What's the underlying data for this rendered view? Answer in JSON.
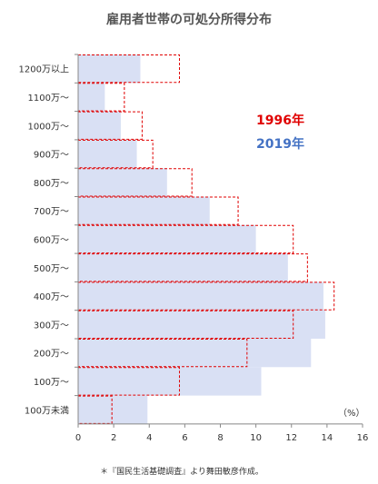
{
  "chart_data": {
    "type": "bar",
    "orientation": "horizontal",
    "title": "雇用者世帯の可処分所得分布",
    "unit_label": "（%）",
    "source_note": "＊『国民生活基礎調査』より舞田敏彦作成。",
    "categories": [
      "1200万以上",
      "1100万〜",
      "1000万〜",
      "900万〜",
      "800万〜",
      "700万〜",
      "600万〜",
      "500万〜",
      "400万〜",
      "300万〜",
      "200万〜",
      "100万〜",
      "100万未満"
    ],
    "xlim": [
      0,
      16
    ],
    "xticks": [
      0,
      2,
      4,
      6,
      8,
      10,
      12,
      14,
      16
    ],
    "series": [
      {
        "name": "2019年",
        "color": "#d9e0f4",
        "style": "filled",
        "values": [
          3.5,
          1.5,
          2.4,
          3.3,
          5.0,
          7.4,
          10.0,
          11.8,
          13.8,
          13.9,
          13.1,
          10.3,
          3.9
        ]
      },
      {
        "name": "1996年",
        "color": "#e00000",
        "style": "dashed-outline",
        "values": [
          5.7,
          2.6,
          3.6,
          4.2,
          6.4,
          9.0,
          12.1,
          12.9,
          14.4,
          12.1,
          9.5,
          5.7,
          1.9
        ]
      }
    ],
    "legend_position": "upper-right"
  }
}
